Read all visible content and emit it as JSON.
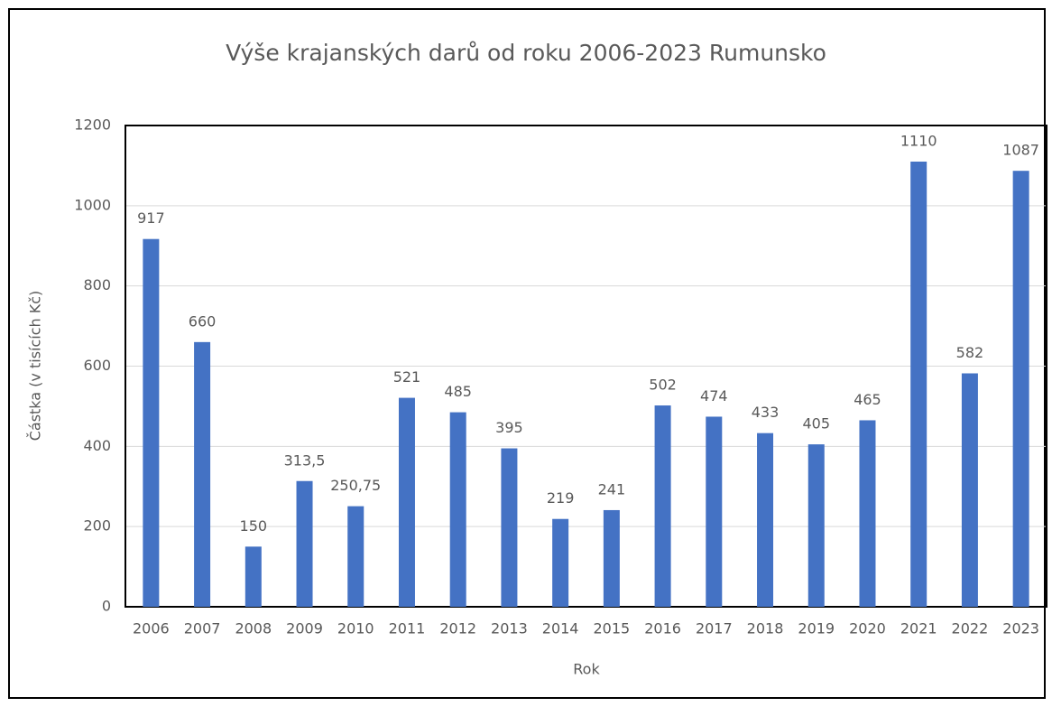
{
  "chart_data": {
    "type": "bar",
    "title": "Výše krajanských darů od roku 2006-2023 Rumunsko",
    "x_label": "Rok",
    "y_label": "Částka (v tisících Kč)",
    "categories": [
      "2006",
      "2007",
      "2008",
      "2009",
      "2010",
      "2011",
      "2012",
      "2013",
      "2014",
      "2015",
      "2016",
      "2017",
      "2018",
      "2019",
      "2020",
      "2021",
      "2022",
      "2023"
    ],
    "values": [
      917,
      660,
      150,
      313.5,
      250.75,
      521,
      485,
      395,
      219,
      241,
      502,
      474,
      433,
      405,
      465,
      1110,
      582,
      1087
    ],
    "value_labels": [
      "917",
      "660",
      "150",
      "313,5",
      "250,75",
      "521",
      "485",
      "395",
      "219",
      "241",
      "502",
      "474",
      "433",
      "405",
      "465",
      "1110",
      "582",
      "1087"
    ],
    "color": "#4472c4",
    "ylim": [
      0,
      1200
    ],
    "yticks": [
      0,
      200,
      400,
      600,
      800,
      1000,
      1200
    ],
    "grid": true
  }
}
